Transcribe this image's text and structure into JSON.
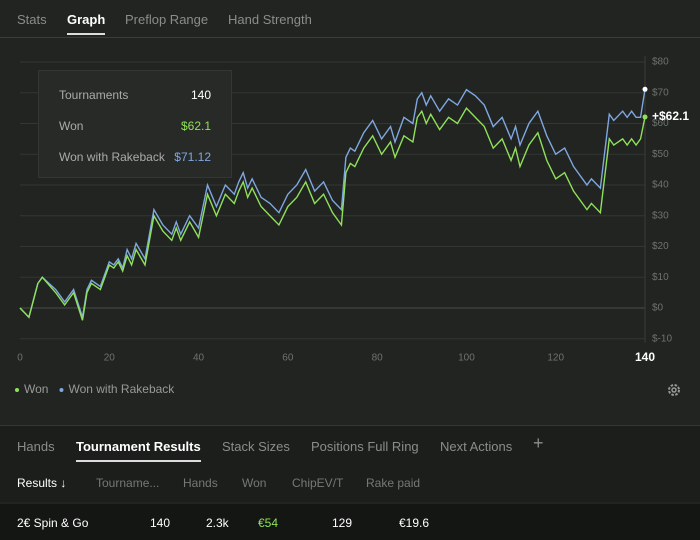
{
  "top_tabs": {
    "items": [
      "Stats",
      "Graph",
      "Preflop Range",
      "Hand Strength"
    ],
    "active": 1
  },
  "chart_data": {
    "type": "line",
    "x": [
      0,
      2,
      4,
      5,
      8,
      10,
      12,
      14,
      15,
      16,
      18,
      20,
      21,
      22,
      23,
      24,
      25,
      26,
      28,
      30,
      32,
      34,
      35,
      36,
      38,
      40,
      42,
      44,
      46,
      48,
      49,
      50,
      51,
      52,
      54,
      56,
      58,
      60,
      62,
      64,
      66,
      68,
      70,
      72,
      73,
      74,
      75,
      77,
      79,
      81,
      83,
      84,
      86,
      88,
      89,
      90,
      91,
      92,
      94,
      96,
      98,
      100,
      102,
      104,
      106,
      108,
      110,
      111,
      112,
      114,
      116,
      118,
      120,
      122,
      124,
      127,
      128,
      130,
      132,
      133,
      135,
      136,
      137,
      138,
      139,
      140
    ],
    "series": [
      {
        "name": "Won",
        "color": "#8fe15a",
        "values": [
          0,
          -3,
          8,
          10,
          5,
          1,
          5,
          -4,
          5,
          8,
          6,
          14,
          13,
          15,
          12,
          17,
          14,
          19,
          14,
          30,
          25,
          22,
          26,
          22,
          28,
          23,
          37,
          30,
          37,
          34,
          38,
          41,
          36,
          39,
          33,
          30,
          27,
          33,
          36,
          41,
          34,
          37,
          31,
          27,
          44,
          47,
          46,
          52,
          56,
          50,
          54,
          49,
          56,
          54,
          62,
          64,
          60,
          63,
          58,
          62,
          60,
          65,
          62,
          59,
          52,
          55,
          48,
          52,
          46,
          53,
          57,
          48,
          42,
          44,
          38,
          32,
          34,
          31,
          55,
          53,
          55,
          53,
          55,
          53,
          55,
          62.1
        ]
      },
      {
        "name": "Won with Rakeback",
        "color": "#7fa7e0",
        "values": [
          0,
          -3,
          8,
          10,
          6,
          2,
          6,
          -3,
          6,
          9,
          7,
          15,
          14,
          16,
          13,
          19,
          16,
          21,
          16,
          32,
          27,
          24,
          28,
          24,
          30,
          26,
          40,
          33,
          40,
          37,
          41,
          44,
          39,
          42,
          36,
          34,
          31,
          37,
          40,
          45,
          38,
          41,
          35,
          32,
          49,
          52,
          51,
          57,
          61,
          55,
          59,
          54,
          62,
          60,
          68,
          70,
          66,
          69,
          64,
          68,
          66,
          71,
          69,
          66,
          59,
          62,
          55,
          59,
          53,
          60,
          64,
          56,
          50,
          52,
          46,
          40,
          42,
          39,
          63,
          61,
          64,
          62,
          64,
          62,
          62,
          71.12
        ]
      }
    ],
    "xlim": [
      0,
      140
    ],
    "xticks": [
      0,
      20,
      40,
      60,
      80,
      100,
      120,
      140
    ],
    "ylim": [
      -10,
      80
    ],
    "yticks": [
      {
        "value": -10,
        "label": "$-10"
      },
      {
        "value": 0,
        "label": "$0"
      },
      {
        "value": 10,
        "label": "$10"
      },
      {
        "value": 20,
        "label": "$20"
      },
      {
        "value": 30,
        "label": "$30"
      },
      {
        "value": 40,
        "label": "$40"
      },
      {
        "value": 50,
        "label": "$50"
      },
      {
        "value": 60,
        "label": "$60"
      },
      {
        "value": 70,
        "label": "$70"
      },
      {
        "value": 80,
        "label": "$80"
      }
    ],
    "grid": true,
    "annotation": "+$62.1"
  },
  "tooltip": {
    "rows": [
      {
        "label": "Tournaments",
        "value": "140"
      },
      {
        "label": "Won",
        "value": "$62.1"
      },
      {
        "label": "Won with Rakeback",
        "value": "$71.12"
      }
    ]
  },
  "bottom_tabs": {
    "items": [
      "Hands",
      "Tournament Results",
      "Stack Sizes",
      "Positions Full Ring",
      "Next Actions",
      "+"
    ],
    "active": 1
  },
  "table": {
    "header": [
      "Results ↓",
      "Tourname...",
      "Hands",
      "Won",
      "ChipEV/T",
      "Rake paid"
    ],
    "rows": [
      [
        "2€ Spin & Go",
        "140",
        "2.3k",
        "€54",
        "129",
        "€19.6"
      ]
    ]
  }
}
